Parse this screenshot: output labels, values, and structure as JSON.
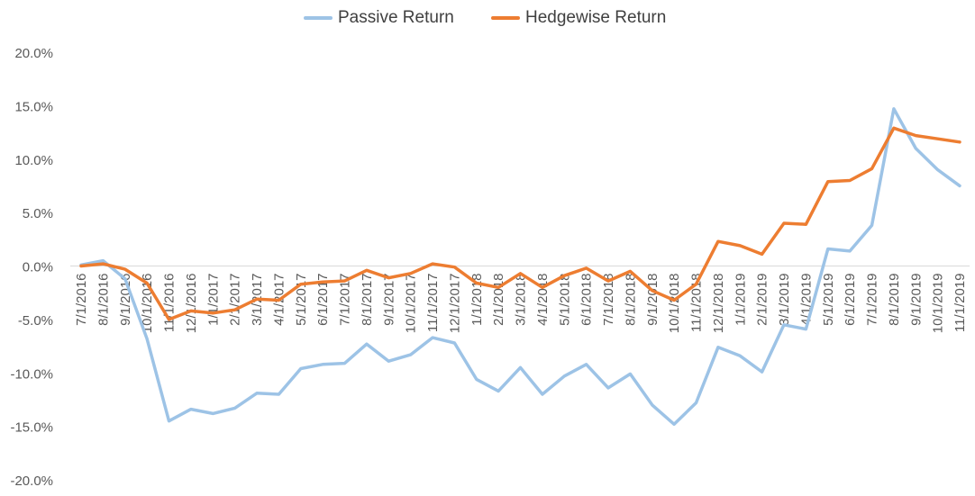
{
  "chart_data": {
    "type": "line",
    "title": "",
    "xlabel": "",
    "ylabel": "",
    "ylim": [
      -0.2,
      0.2
    ],
    "yticks": [
      {
        "value": 0.2,
        "label": "20.0%"
      },
      {
        "value": 0.15,
        "label": "15.0%"
      },
      {
        "value": 0.1,
        "label": "10.0%"
      },
      {
        "value": 0.05,
        "label": "5.0%"
      },
      {
        "value": 0.0,
        "label": "0.0%"
      },
      {
        "value": -0.05,
        "label": "-5.0%"
      },
      {
        "value": -0.1,
        "label": "-10.0%"
      },
      {
        "value": -0.15,
        "label": "-15.0%"
      },
      {
        "value": -0.2,
        "label": "-20.0%"
      }
    ],
    "categories": [
      "7/1/2016",
      "8/1/2016",
      "9/1/2016",
      "10/1/2016",
      "11/1/2016",
      "12/1/2016",
      "1/1/2017",
      "2/1/2017",
      "3/1/2017",
      "4/1/2017",
      "5/1/2017",
      "6/1/2017",
      "7/1/2017",
      "8/1/2017",
      "9/1/2017",
      "10/1/2017",
      "11/1/2017",
      "12/1/2017",
      "1/1/2018",
      "2/1/2018",
      "3/1/2018",
      "4/1/2018",
      "5/1/2018",
      "6/1/2018",
      "7/1/2018",
      "8/1/2018",
      "9/1/2018",
      "10/1/2018",
      "11/1/2018",
      "12/1/2018",
      "1/1/2019",
      "2/1/2019",
      "3/1/2019",
      "4/1/2019",
      "5/1/2019",
      "6/1/2019",
      "7/1/2019",
      "8/1/2019",
      "9/1/2019",
      "10/1/2019",
      "11/1/2019"
    ],
    "series": [
      {
        "name": "Passive Return",
        "color": "#9DC3E6",
        "values": [
          0.001,
          0.005,
          -0.012,
          -0.068,
          -0.145,
          -0.134,
          -0.138,
          -0.133,
          -0.119,
          -0.12,
          -0.096,
          -0.092,
          -0.091,
          -0.073,
          -0.089,
          -0.083,
          -0.067,
          -0.072,
          -0.106,
          -0.117,
          -0.095,
          -0.12,
          -0.103,
          -0.092,
          -0.114,
          -0.101,
          -0.13,
          -0.148,
          -0.128,
          -0.076,
          -0.084,
          -0.099,
          -0.055,
          -0.059,
          0.016,
          0.014,
          0.038,
          0.147,
          0.11,
          0.09,
          0.075
        ]
      },
      {
        "name": "Hedgewise Return",
        "color": "#ED7D31",
        "values": [
          0.0,
          0.002,
          -0.003,
          -0.016,
          -0.05,
          -0.042,
          -0.044,
          -0.041,
          -0.031,
          -0.032,
          -0.017,
          -0.015,
          -0.014,
          -0.004,
          -0.011,
          -0.007,
          0.002,
          -0.001,
          -0.016,
          -0.02,
          -0.007,
          -0.02,
          -0.009,
          -0.002,
          -0.014,
          -0.005,
          -0.023,
          -0.032,
          -0.017,
          0.023,
          0.019,
          0.011,
          0.04,
          0.039,
          0.079,
          0.08,
          0.091,
          0.129,
          0.122,
          0.119,
          0.116
        ]
      }
    ],
    "grid": false,
    "legend": "top-center"
  }
}
